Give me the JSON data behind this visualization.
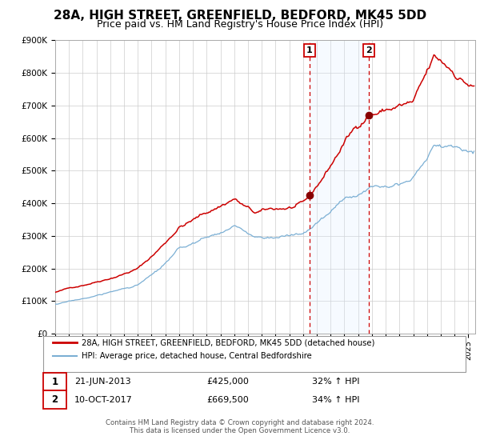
{
  "title": "28A, HIGH STREET, GREENFIELD, BEDFORD, MK45 5DD",
  "subtitle": "Price paid vs. HM Land Registry's House Price Index (HPI)",
  "ylim": [
    0,
    900000
  ],
  "yticks": [
    0,
    100000,
    200000,
    300000,
    400000,
    500000,
    600000,
    700000,
    800000,
    900000
  ],
  "ytick_labels": [
    "£0",
    "£100K",
    "£200K",
    "£300K",
    "£400K",
    "£500K",
    "£600K",
    "£700K",
    "£800K",
    "£900K"
  ],
  "xlim_start": 1995.0,
  "xlim_end": 2025.5,
  "sale1_date": 2013.47,
  "sale1_price": 425000,
  "sale1_label": "21-JUN-2013",
  "sale1_hpi_pct": "32%",
  "sale2_date": 2017.78,
  "sale2_price": 669500,
  "sale2_label": "10-OCT-2017",
  "sale2_hpi_pct": "34%",
  "red_line_color": "#cc0000",
  "blue_line_color": "#7bafd4",
  "fill_color": "#ddeeff",
  "background_color": "#ffffff",
  "grid_color": "#cccccc",
  "legend_line1": "28A, HIGH STREET, GREENFIELD, BEDFORD, MK45 5DD (detached house)",
  "legend_line2": "HPI: Average price, detached house, Central Bedfordshire",
  "footer1": "Contains HM Land Registry data © Crown copyright and database right 2024.",
  "footer2": "This data is licensed under the Open Government Licence v3.0.",
  "title_fontsize": 11,
  "subtitle_fontsize": 9
}
